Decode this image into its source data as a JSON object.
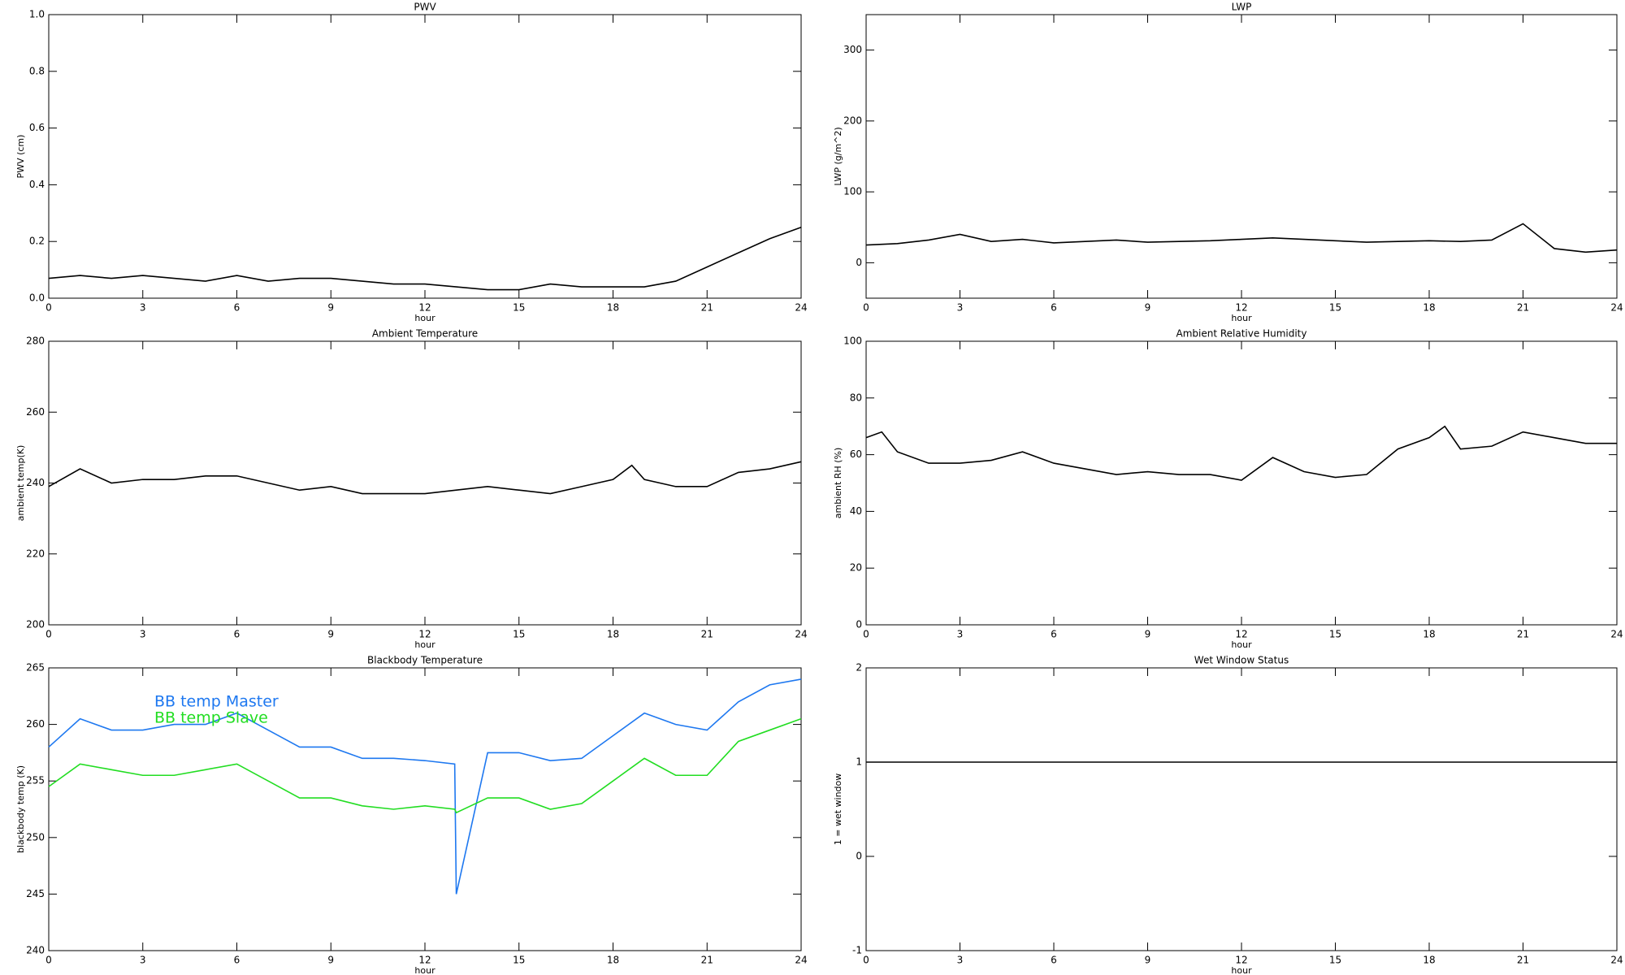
{
  "chart_data": [
    {
      "type": "line",
      "title": "PWV",
      "xlabel": "hour",
      "ylabel": "PWV (cm)",
      "color": "#000000",
      "x": [
        0,
        1,
        2,
        3,
        4,
        5,
        6,
        7,
        8,
        9,
        10,
        11,
        12,
        13,
        14,
        15,
        16,
        17,
        18,
        19,
        20,
        21,
        22,
        23,
        24
      ],
      "values": [
        0.07,
        0.08,
        0.07,
        0.08,
        0.07,
        0.06,
        0.08,
        0.06,
        0.07,
        0.07,
        0.06,
        0.05,
        0.05,
        0.04,
        0.03,
        0.03,
        0.05,
        0.04,
        0.04,
        0.04,
        0.06,
        0.11,
        0.16,
        0.21,
        0.25
      ],
      "xlim": [
        0,
        24
      ],
      "xticks": [
        0,
        3,
        6,
        9,
        12,
        15,
        18,
        21,
        24
      ],
      "ylim": [
        0,
        1
      ],
      "yticks": [
        {
          "value": 0,
          "label": "0.0"
        },
        0.2,
        0.4,
        0.6,
        0.8,
        {
          "value": 1,
          "label": "1.0"
        }
      ]
    },
    {
      "type": "line",
      "title": "LWP",
      "xlabel": "hour",
      "ylabel": "LWP (g/m^2)",
      "color": "#000000",
      "x": [
        0,
        1,
        2,
        3,
        4,
        5,
        6,
        7,
        8,
        9,
        10,
        11,
        12,
        13,
        14,
        15,
        16,
        17,
        18,
        19,
        20,
        21,
        22,
        23,
        24
      ],
      "values": [
        25,
        27,
        32,
        40,
        30,
        33,
        28,
        30,
        32,
        29,
        30,
        31,
        33,
        35,
        33,
        31,
        29,
        30,
        31,
        30,
        32,
        55,
        20,
        15,
        18
      ],
      "xlim": [
        0,
        24
      ],
      "xticks": [
        0,
        3,
        6,
        9,
        12,
        15,
        18,
        21,
        24
      ],
      "ylim": [
        -50,
        350
      ],
      "yticks": [
        0,
        100,
        200,
        300
      ]
    },
    {
      "type": "line",
      "title": "Ambient Temperature",
      "xlabel": "hour",
      "ylabel": "ambient temp(K)",
      "color": "#000000",
      "x": [
        0,
        1,
        2,
        3,
        4,
        5,
        6,
        7,
        8,
        9,
        10,
        11,
        12,
        13,
        14,
        15,
        16,
        17,
        18,
        18.6,
        19,
        20,
        21,
        22,
        23,
        24
      ],
      "values": [
        239,
        244,
        240,
        241,
        241,
        242,
        242,
        240,
        238,
        239,
        237,
        237,
        237,
        238,
        239,
        238,
        237,
        239,
        241,
        245,
        241,
        239,
        239,
        243,
        244,
        246
      ],
      "xlim": [
        0,
        24
      ],
      "xticks": [
        0,
        3,
        6,
        9,
        12,
        15,
        18,
        21,
        24
      ],
      "ylim": [
        200,
        280
      ],
      "yticks": [
        200,
        220,
        240,
        260,
        280
      ]
    },
    {
      "type": "line",
      "title": "Ambient Relative Humidity",
      "xlabel": "hour",
      "ylabel": "ambient RH (%)",
      "color": "#000000",
      "x": [
        0,
        0.5,
        1,
        2,
        3,
        4,
        5,
        6,
        7,
        8,
        9,
        10,
        11,
        12,
        13,
        14,
        15,
        16,
        17,
        18,
        18.5,
        19,
        20,
        21,
        22,
        23,
        24
      ],
      "values": [
        66,
        68,
        61,
        57,
        57,
        58,
        61,
        57,
        55,
        53,
        54,
        53,
        53,
        51,
        59,
        54,
        52,
        53,
        62,
        66,
        70,
        62,
        63,
        68,
        66,
        64,
        64
      ],
      "xlim": [
        0,
        24
      ],
      "xticks": [
        0,
        3,
        6,
        9,
        12,
        15,
        18,
        21,
        24
      ],
      "ylim": [
        0,
        100
      ],
      "yticks": [
        0,
        20,
        40,
        60,
        80,
        100
      ]
    },
    {
      "type": "line",
      "title": "Blackbody Temperature",
      "xlabel": "hour",
      "ylabel": "blackbody temp (K)",
      "x": [
        0,
        1,
        2,
        3,
        4,
        5,
        6,
        7,
        8,
        9,
        10,
        11,
        12,
        12.95,
        13,
        14,
        15,
        16,
        17,
        18,
        19,
        20,
        21,
        22,
        23,
        24
      ],
      "series": [
        {
          "name": "BB temp Master",
          "color": "#1e78f0",
          "values": [
            258,
            260.5,
            259.5,
            259.5,
            260,
            260,
            261,
            259.5,
            258,
            258,
            257,
            257,
            256.8,
            256.5,
            245,
            257.5,
            257.5,
            256.8,
            257,
            259,
            261,
            260,
            259.5,
            262,
            263.5,
            264
          ]
        },
        {
          "name": "BB temp Slave",
          "color": "#22dd22",
          "values": [
            254.5,
            256.5,
            256,
            255.5,
            255.5,
            256,
            256.5,
            255,
            253.5,
            253.5,
            252.8,
            252.5,
            252.8,
            252.5,
            252.2,
            253.5,
            253.5,
            252.5,
            253,
            255,
            257,
            255.5,
            255.5,
            258.5,
            259.5,
            260.5
          ]
        }
      ],
      "xlim": [
        0,
        24
      ],
      "xticks": [
        0,
        3,
        6,
        9,
        12,
        15,
        18,
        21,
        24
      ],
      "ylim": [
        240,
        265
      ],
      "yticks": [
        240,
        245,
        250,
        255,
        260,
        265
      ]
    },
    {
      "type": "line",
      "title": "Wet Window Status",
      "xlabel": "hour",
      "ylabel": "1 = wet window",
      "color": "#000000",
      "x": [
        0,
        24
      ],
      "values": [
        1,
        1
      ],
      "xlim": [
        0,
        24
      ],
      "xticks": [
        0,
        3,
        6,
        9,
        12,
        15,
        18,
        21,
        24
      ],
      "ylim": [
        -1,
        2
      ],
      "yticks": [
        -1,
        0,
        1,
        2
      ]
    }
  ]
}
